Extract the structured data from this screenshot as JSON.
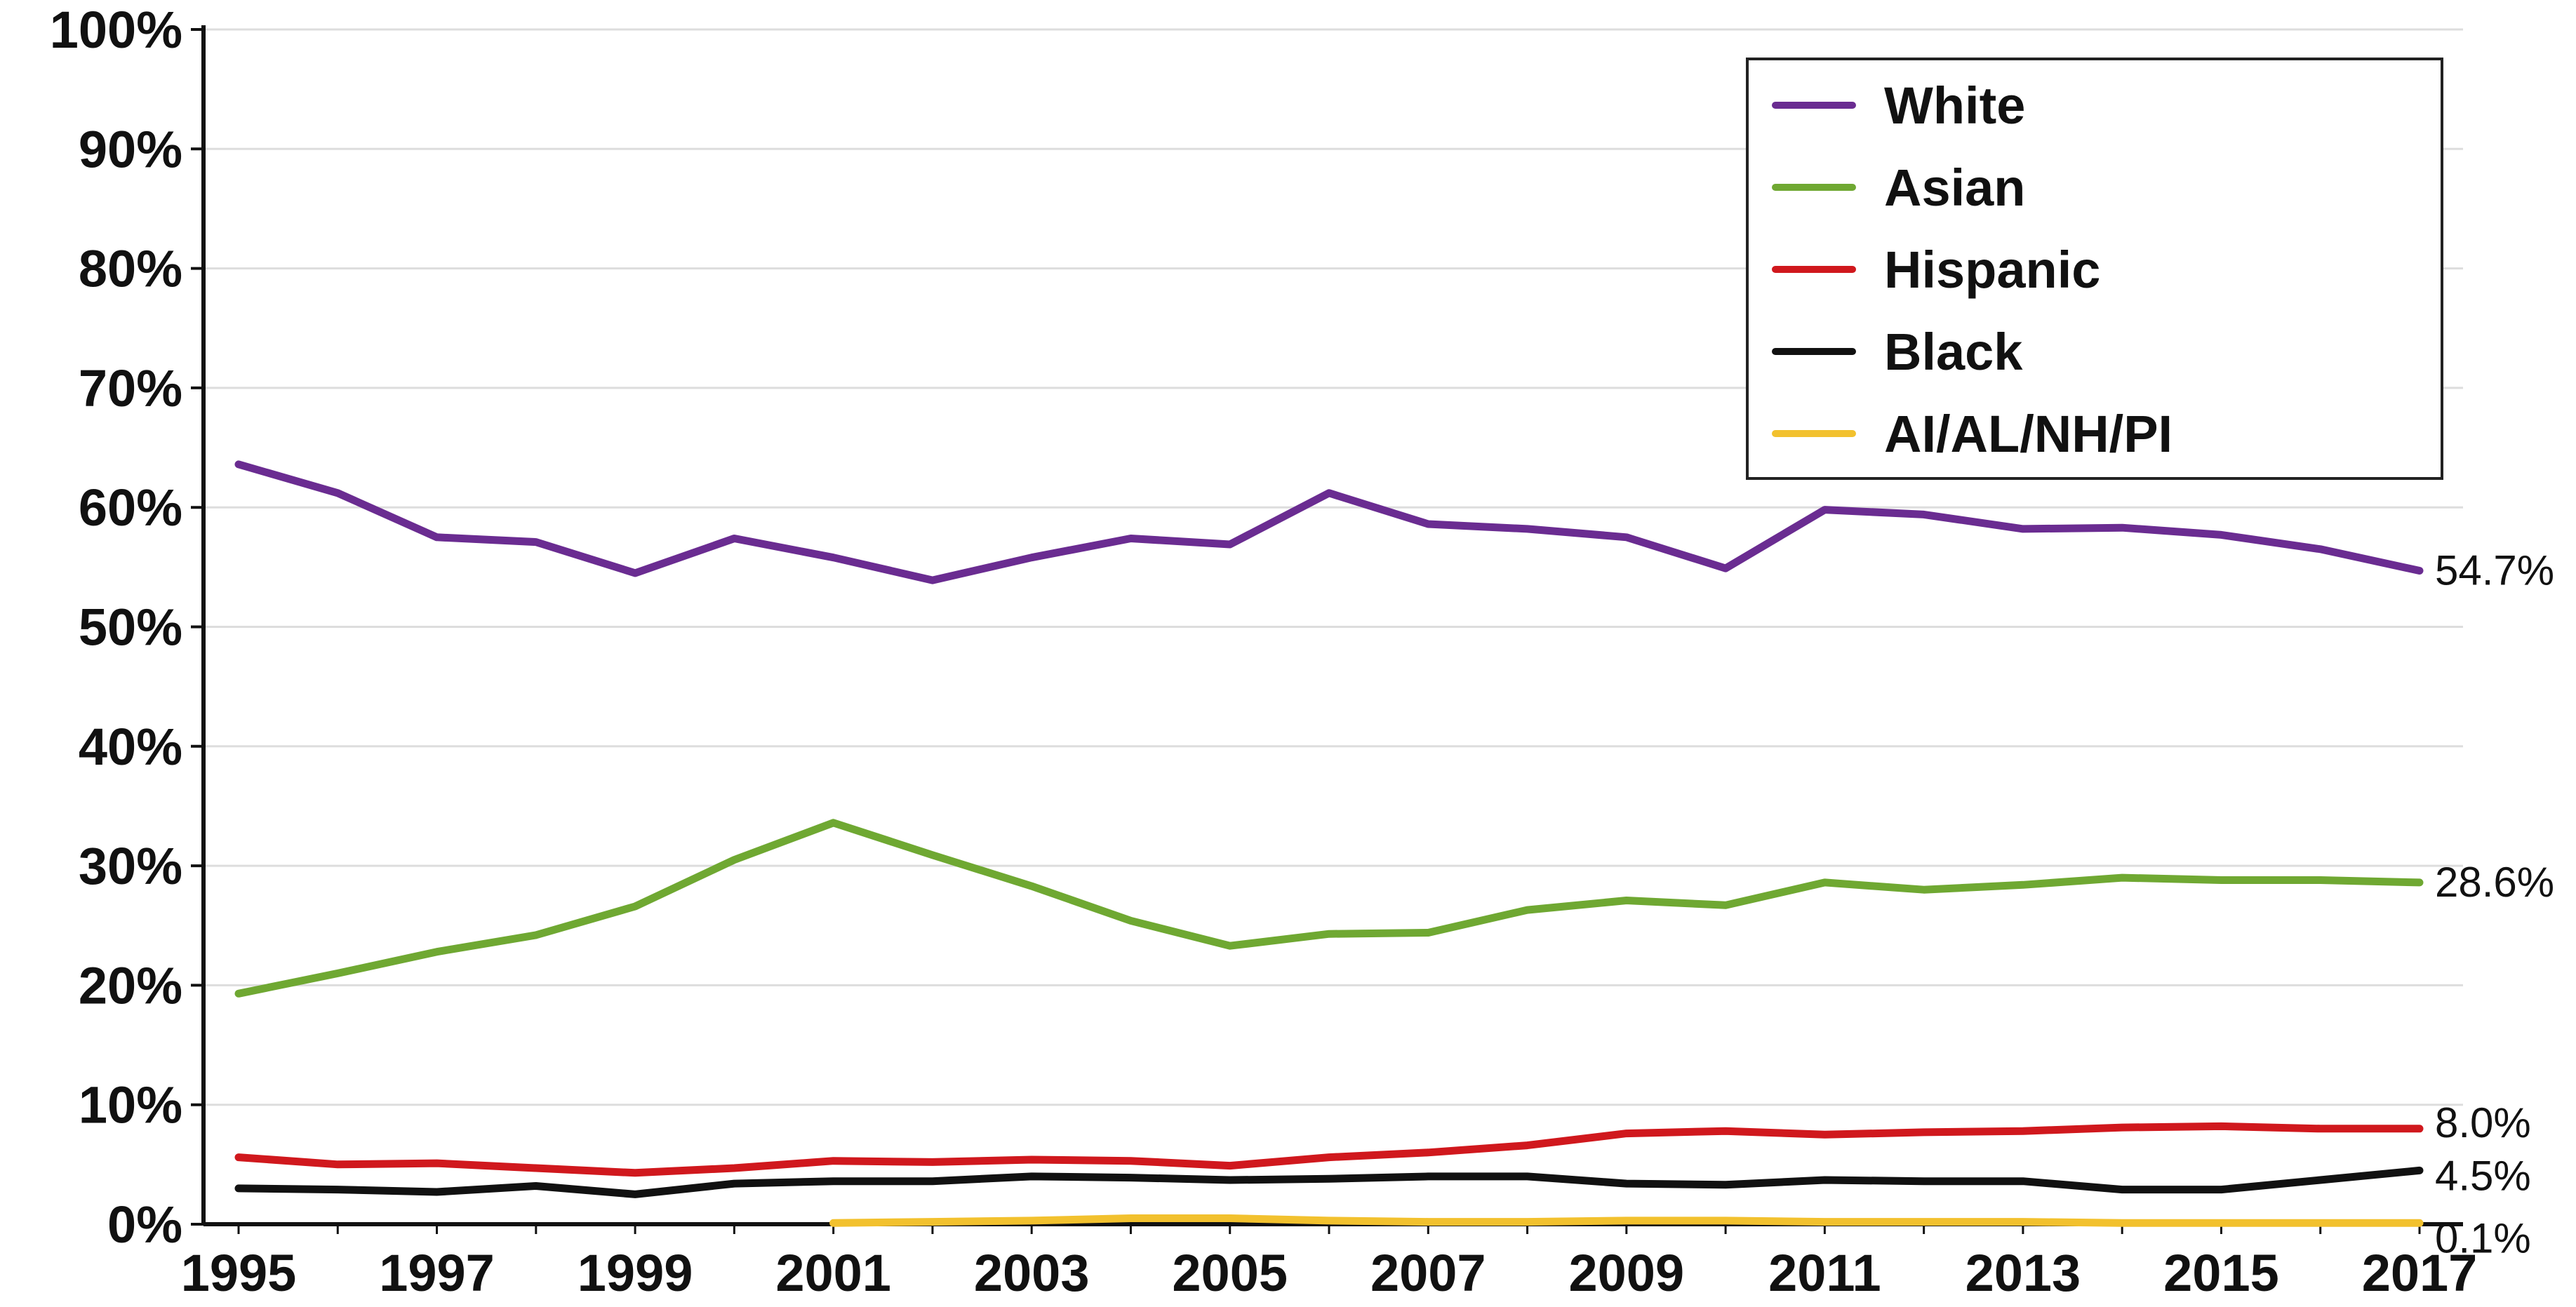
{
  "chart_data": {
    "type": "line",
    "title": "",
    "xlabel": "",
    "ylabel": "",
    "x": [
      1995,
      1996,
      1997,
      1998,
      1999,
      2000,
      2001,
      2002,
      2003,
      2004,
      2005,
      2006,
      2007,
      2008,
      2009,
      2010,
      2011,
      2012,
      2013,
      2014,
      2015,
      2016,
      2017
    ],
    "xticks": [
      "1995",
      "1997",
      "1999",
      "2001",
      "2003",
      "2005",
      "2007",
      "2009",
      "2011",
      "2013",
      "2015",
      "2017"
    ],
    "ylim": [
      0,
      100
    ],
    "yticks": [
      "0%",
      "10%",
      "20%",
      "30%",
      "40%",
      "50%",
      "60%",
      "70%",
      "80%",
      "90%",
      "100%"
    ],
    "grid": true,
    "legend_position": "top-right",
    "series": [
      {
        "name": "White",
        "color": "#6a2c91",
        "values": [
          63.6,
          61.2,
          57.5,
          57.1,
          54.5,
          57.4,
          55.8,
          53.9,
          55.8,
          57.4,
          56.9,
          61.2,
          58.6,
          58.2,
          57.5,
          54.9,
          59.8,
          59.4,
          58.2,
          58.3,
          57.7,
          56.5,
          54.7
        ],
        "end_label": "54.7%"
      },
      {
        "name": "Asian",
        "color": "#6fa832",
        "values": [
          19.3,
          21.0,
          22.8,
          24.2,
          26.6,
          30.5,
          33.6,
          30.9,
          28.3,
          25.4,
          23.3,
          24.3,
          24.4,
          26.3,
          27.1,
          26.7,
          28.6,
          28.0,
          28.4,
          29.0,
          28.8,
          28.8,
          28.6
        ],
        "end_label": "28.6%"
      },
      {
        "name": "Hispanic",
        "color": "#d0181d",
        "values": [
          5.6,
          5.0,
          5.1,
          4.7,
          4.3,
          4.7,
          5.3,
          5.2,
          5.4,
          5.3,
          4.9,
          5.6,
          6.0,
          6.6,
          7.6,
          7.8,
          7.5,
          7.7,
          7.8,
          8.1,
          8.2,
          8.0,
          8.0
        ],
        "end_label": "8.0%"
      },
      {
        "name": "Black",
        "color": "#111111",
        "values": [
          3.0,
          2.9,
          2.7,
          3.2,
          2.5,
          3.4,
          3.6,
          3.6,
          4.0,
          3.9,
          3.7,
          3.8,
          4.0,
          4.0,
          3.4,
          3.3,
          3.7,
          3.6,
          3.6,
          2.9,
          2.9,
          3.7,
          4.5
        ],
        "end_label": "4.5%"
      },
      {
        "name": "AI/AL/NH/PI",
        "color": "#f2c12e",
        "start_year": 2001,
        "values": [
          null,
          null,
          null,
          null,
          null,
          null,
          0.1,
          0.2,
          0.3,
          0.5,
          0.5,
          0.3,
          0.2,
          0.2,
          0.3,
          0.3,
          0.2,
          0.2,
          0.2,
          0.1,
          0.1,
          0.1,
          0.1
        ],
        "end_label": "0.1%"
      }
    ]
  }
}
